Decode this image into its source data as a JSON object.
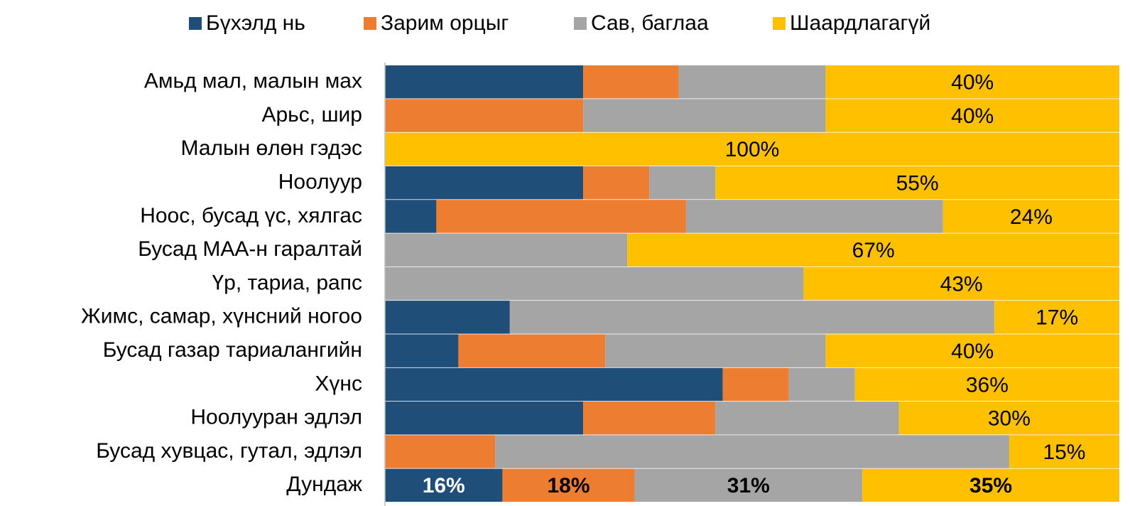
{
  "chart_data": {
    "type": "stacked_bar_horizontal",
    "categories": [
      "Амьд мал, малын мах",
      "Арьс, шир",
      "Малын өлөн гэдэс",
      "Ноолуур",
      "Ноос, бусад үс, хялгас",
      "Бусад МАА-н гаралтай",
      "Үр, тариа, рапс",
      "Жимс, самар, хүнсний ногоо",
      "Бусад газар тариалангийн",
      "Хүнс",
      "Ноолууран эдлэл",
      "Бусад хувцас, гутал, эдлэл",
      "Дундаж"
    ],
    "series": [
      {
        "name": "Бүхэлд нь",
        "color": "#1f4e79",
        "label_color": "#ffffff",
        "values": [
          27,
          0,
          0,
          27,
          7,
          0,
          0,
          17,
          10,
          46,
          27,
          0,
          16
        ],
        "value_labels": [
          null,
          null,
          null,
          null,
          null,
          null,
          null,
          null,
          null,
          null,
          null,
          null,
          "16%"
        ]
      },
      {
        "name": "Зарим орцыг",
        "color": "#ed7d31",
        "label_color": "#000000",
        "values": [
          13,
          27,
          0,
          9,
          34,
          0,
          0,
          0,
          20,
          9,
          18,
          15,
          18
        ],
        "value_labels": [
          null,
          null,
          null,
          null,
          null,
          null,
          null,
          null,
          null,
          null,
          null,
          null,
          "18%"
        ]
      },
      {
        "name": "Сав, баглаа",
        "color": "#a5a5a5",
        "label_color": "#000000",
        "values": [
          20,
          33,
          0,
          9,
          35,
          33,
          57,
          66,
          30,
          9,
          25,
          70,
          31
        ],
        "value_labels": [
          null,
          null,
          null,
          null,
          null,
          null,
          null,
          null,
          null,
          null,
          null,
          null,
          "31%"
        ]
      },
      {
        "name": "Шаардлагагүй",
        "color": "#ffc000",
        "label_color": "#000000",
        "values": [
          40,
          40,
          100,
          55,
          24,
          67,
          43,
          17,
          40,
          36,
          30,
          15,
          35
        ],
        "value_labels": [
          "40%",
          "40%",
          "100%",
          "55%",
          "24%",
          "67%",
          "43%",
          "17%",
          "40%",
          "36%",
          "30%",
          "15%",
          "35%"
        ]
      }
    ],
    "xlim": [
      0,
      100
    ]
  }
}
